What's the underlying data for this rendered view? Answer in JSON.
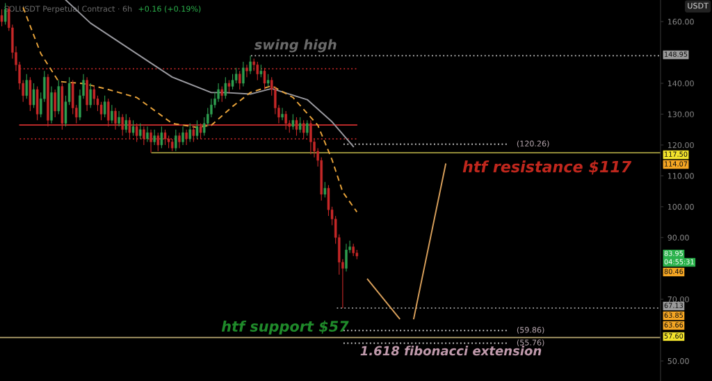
{
  "chart_data": {
    "type": "candlestick",
    "title": "SOLUSDT Perpetual Contract · 6h",
    "subtitle": "+0.16 (+0.19%)",
    "ylabel": "USDT",
    "categories": [
      null,
      null,
      null,
      null,
      null,
      null,
      null,
      null,
      null,
      null,
      null,
      null,
      null,
      null,
      null,
      null,
      null,
      null,
      null,
      null,
      null,
      null,
      null,
      null,
      null,
      null,
      null,
      null,
      null,
      null,
      null,
      null,
      null,
      null,
      null,
      null,
      null,
      null,
      null,
      null,
      null,
      null,
      null,
      null,
      null,
      null,
      null,
      null,
      null,
      null,
      null,
      null,
      null,
      null,
      null,
      null,
      null,
      null,
      null,
      null,
      null,
      null,
      null,
      null,
      null,
      null,
      null,
      null,
      null,
      null,
      null,
      null,
      null,
      null,
      null,
      null,
      null,
      null,
      null,
      null,
      null,
      null,
      null,
      null,
      null,
      null,
      null,
      null,
      null,
      null,
      null,
      null,
      null,
      null,
      null,
      null,
      null,
      null,
      null,
      null,
      null,
      null,
      null,
      null,
      null,
      null,
      null,
      null,
      null,
      null,
      null,
      null,
      null,
      null,
      null,
      null,
      null,
      null,
      null,
      null,
      null,
      null,
      null,
      null,
      null,
      null,
      null,
      null,
      null,
      null,
      null,
      null,
      null,
      null,
      null,
      null,
      null,
      null,
      null,
      null,
      null,
      null,
      null,
      null,
      null,
      null,
      null,
      null,
      null,
      null,
      null,
      null,
      null,
      null,
      null,
      null,
      null,
      null,
      null,
      null,
      null,
      null,
      null,
      null,
      null,
      null,
      null,
      null,
      null,
      null,
      null,
      null,
      null,
      null,
      null,
      null,
      null,
      null,
      null,
      null,
      null,
      null,
      null,
      null,
      null,
      null
    ],
    "ohlc": [
      [
        162,
        164,
        158.5,
        160
      ],
      [
        160,
        166,
        159,
        164
      ],
      [
        164,
        165,
        157,
        158
      ],
      [
        158,
        159,
        148,
        150
      ],
      [
        150,
        152,
        144,
        146
      ],
      [
        146,
        147,
        138,
        140
      ],
      [
        140,
        141,
        134,
        136
      ],
      [
        136,
        143,
        135,
        141
      ],
      [
        141,
        142,
        131,
        133
      ],
      [
        133,
        140,
        132,
        138
      ],
      [
        138,
        139,
        128,
        130
      ],
      [
        130,
        137,
        129,
        135
      ],
      [
        135,
        144,
        134,
        142
      ],
      [
        142,
        143,
        126,
        128
      ],
      [
        128,
        139,
        127,
        137
      ],
      [
        137,
        138,
        129,
        131
      ],
      [
        131,
        141,
        130,
        139
      ],
      [
        139,
        140,
        125,
        127
      ],
      [
        127,
        136,
        126,
        134
      ],
      [
        134,
        142,
        133,
        140
      ],
      [
        140,
        141,
        130,
        132
      ],
      [
        132,
        133,
        127,
        129
      ],
      [
        129,
        138,
        128,
        136
      ],
      [
        136,
        143,
        135,
        141
      ],
      [
        141,
        142,
        131,
        133
      ],
      [
        133,
        140,
        132,
        138
      ],
      [
        138,
        139,
        133,
        135
      ],
      [
        135,
        136,
        131,
        133
      ],
      [
        133,
        134,
        128,
        130
      ],
      [
        130,
        136,
        129,
        134
      ],
      [
        134,
        135,
        126,
        128
      ],
      [
        128,
        133,
        127,
        131
      ],
      [
        131,
        132,
        125,
        127
      ],
      [
        127,
        131,
        126,
        129
      ],
      [
        129,
        130,
        123,
        125
      ],
      [
        125,
        130,
        124,
        128
      ],
      [
        128,
        129,
        122,
        124
      ],
      [
        124,
        128,
        123,
        126
      ],
      [
        126,
        127,
        121,
        123
      ],
      [
        123,
        127,
        122,
        125
      ],
      [
        125,
        126,
        120,
        122
      ],
      [
        122,
        126,
        121,
        124
      ],
      [
        124,
        125,
        117.5,
        121
      ],
      [
        121,
        125,
        120,
        123
      ],
      [
        123,
        124,
        118,
        120
      ],
      [
        120,
        126,
        119,
        124
      ],
      [
        124,
        125,
        120,
        122
      ],
      [
        122,
        123,
        119,
        121
      ],
      [
        121,
        122,
        118,
        119
      ],
      [
        119,
        125,
        118,
        123
      ],
      [
        123,
        124,
        119,
        121
      ],
      [
        121,
        126,
        120,
        124
      ],
      [
        124,
        125,
        120,
        122
      ],
      [
        122,
        127,
        121,
        125
      ],
      [
        125,
        126,
        121,
        123
      ],
      [
        123,
        128,
        122,
        126
      ],
      [
        126,
        127,
        122,
        124
      ],
      [
        124,
        129,
        123,
        127
      ],
      [
        127,
        132,
        126,
        130
      ],
      [
        130,
        135,
        129,
        133
      ],
      [
        133,
        137,
        132,
        135
      ],
      [
        135,
        140,
        134,
        138
      ],
      [
        138,
        139,
        134,
        136
      ],
      [
        136,
        142,
        135,
        140
      ],
      [
        140,
        141,
        137,
        139
      ],
      [
        139,
        143,
        138,
        141
      ],
      [
        141,
        145,
        140,
        143
      ],
      [
        143,
        144,
        138,
        140
      ],
      [
        140,
        147,
        139,
        145
      ],
      [
        145,
        146,
        142,
        144
      ],
      [
        144,
        148.95,
        143,
        147
      ],
      [
        147,
        148,
        144,
        146
      ],
      [
        146,
        147,
        141,
        143
      ],
      [
        143,
        146,
        142,
        144
      ],
      [
        144,
        145,
        138,
        140
      ],
      [
        140,
        143,
        139,
        141
      ],
      [
        141,
        142,
        136,
        138
      ],
      [
        138,
        139,
        130,
        132
      ],
      [
        132,
        133,
        127,
        129
      ],
      [
        129,
        132,
        128,
        130
      ],
      [
        130,
        131,
        125,
        127
      ],
      [
        127,
        128,
        124,
        126
      ],
      [
        126,
        130,
        125,
        128
      ],
      [
        128,
        129,
        123,
        125
      ],
      [
        125,
        129,
        124,
        127
      ],
      [
        127,
        128,
        122,
        124
      ],
      [
        124,
        128,
        123,
        127
      ],
      [
        127,
        128,
        117,
        121
      ],
      [
        121,
        122,
        116,
        118
      ],
      [
        118,
        119,
        113,
        115
      ],
      [
        115,
        116,
        102,
        104
      ],
      [
        104,
        108,
        103,
        106
      ],
      [
        106,
        107,
        97,
        99
      ],
      [
        99,
        100,
        94,
        96
      ],
      [
        96,
        97,
        88,
        90
      ],
      [
        90,
        91,
        78,
        82
      ],
      [
        82,
        83,
        67.13,
        80
      ],
      [
        80,
        88,
        79,
        86
      ],
      [
        86,
        89,
        85,
        87
      ],
      [
        87,
        88,
        84,
        85
      ],
      [
        85,
        86,
        83,
        84
      ],
      null,
      null,
      null,
      null,
      null,
      null,
      null,
      null,
      null,
      null,
      null,
      null,
      null,
      null,
      null,
      null,
      null,
      null,
      null,
      null,
      null,
      null,
      null,
      null,
      null,
      null,
      null,
      null,
      null,
      null,
      null,
      null,
      null,
      null,
      null,
      null,
      null,
      null,
      null,
      null,
      null,
      null,
      null,
      null,
      null,
      null,
      null,
      null,
      null,
      null,
      null,
      null,
      null,
      null,
      null,
      null,
      null,
      null,
      null,
      null,
      null,
      null,
      null,
      null,
      null,
      null,
      null,
      null,
      null,
      null,
      null,
      null,
      null,
      null,
      null,
      null,
      null,
      null,
      null,
      null,
      null,
      null,
      null,
      null,
      null
    ],
    "colors": [
      "#c62828",
      "#2e9e4f",
      "#c62828",
      "#c62828",
      "#c62828",
      "#c62828",
      "#c62828",
      "#2e9e4f",
      "#c62828",
      "#2e9e4f",
      "#c62828",
      "#2e9e4f",
      "#2e9e4f",
      "#c62828",
      "#2e9e4f",
      "#c62828",
      "#2e9e4f",
      "#c62828",
      "#2e9e4f",
      "#2e9e4f",
      "#c62828",
      "#c62828",
      "#2e9e4f",
      "#2e9e4f",
      "#c62828",
      "#2e9e4f",
      "#c62828",
      "#c62828",
      "#c62828",
      "#2e9e4f",
      "#c62828",
      "#2e9e4f",
      "#c62828",
      "#2e9e4f",
      "#c62828",
      "#2e9e4f",
      "#c62828",
      "#2e9e4f",
      "#c62828",
      "#2e9e4f",
      "#c62828",
      "#2e9e4f",
      "#c62828",
      "#2e9e4f",
      "#c62828",
      "#2e9e4f",
      "#c62828",
      "#c62828",
      "#c62828",
      "#2e9e4f",
      "#c62828",
      "#2e9e4f",
      "#c62828",
      "#2e9e4f",
      "#c62828",
      "#2e9e4f",
      "#c62828",
      "#2e9e4f",
      "#2e9e4f",
      "#2e9e4f",
      "#2e9e4f",
      "#2e9e4f",
      "#c62828",
      "#2e9e4f",
      "#c62828",
      "#2e9e4f",
      "#2e9e4f",
      "#c62828",
      "#2e9e4f",
      "#c62828",
      "#2e9e4f",
      "#c62828",
      "#c62828",
      "#2e9e4f",
      "#c62828",
      "#2e9e4f",
      "#c62828",
      "#c62828",
      "#c62828",
      "#2e9e4f",
      "#c62828",
      "#c62828",
      "#2e9e4f",
      "#c62828",
      "#2e9e4f",
      "#c62828",
      "#2e9e4f",
      "#c62828",
      "#c62828",
      "#c62828",
      "#c62828",
      "#2e9e4f",
      "#c62828",
      "#c62828",
      "#c62828",
      "#c62828",
      "#c62828",
      "#2e9e4f",
      "#2e9e4f",
      "#c62828",
      "#c62828",
      null,
      null,
      null,
      null,
      null,
      null,
      null,
      null,
      null,
      null,
      null,
      null,
      null,
      null,
      null,
      null,
      null,
      null,
      null,
      null,
      null,
      null,
      null,
      null,
      null,
      null,
      null,
      null,
      null,
      null,
      null,
      null,
      null,
      null,
      null,
      null,
      null,
      null,
      null,
      null,
      null,
      null,
      null,
      null,
      null,
      null,
      null,
      null,
      null,
      null,
      null,
      null,
      null,
      null,
      null,
      null,
      null,
      null,
      null,
      null,
      null,
      null,
      null,
      null,
      null,
      null,
      null,
      null,
      null,
      null,
      null,
      null,
      null,
      null,
      null,
      null,
      null,
      null,
      null,
      null,
      null,
      null,
      null,
      null,
      null
    ],
    "series": [
      {
        "type": "line",
        "color": "#9a9aa0",
        "line_style": "solid",
        "values": [
          null,
          null,
          null,
          null,
          null,
          null,
          null,
          null,
          null,
          null,
          null,
          null,
          null,
          null,
          null,
          null,
          null,
          null,
          167,
          null,
          null,
          null,
          null,
          null,
          null,
          159.5,
          null,
          null,
          null,
          null,
          null,
          null,
          null,
          null,
          null,
          null,
          null,
          null,
          149.6,
          null,
          null,
          null,
          null,
          null,
          null,
          null,
          null,
          null,
          142,
          null,
          null,
          null,
          null,
          null,
          null,
          null,
          null,
          null,
          null,
          137,
          null,
          null,
          null,
          137,
          null,
          null,
          null,
          null,
          null,
          null,
          136.5,
          null,
          null,
          null,
          null,
          null,
          138.3,
          null,
          null,
          null,
          null,
          null,
          null,
          null,
          null,
          null,
          134.7,
          null,
          null,
          null,
          null,
          null,
          null,
          127.5,
          null,
          null,
          null,
          null,
          null,
          119.5,
          null,
          null,
          null,
          null,
          null,
          null,
          null,
          null,
          null,
          null,
          null,
          null,
          null,
          null,
          null,
          null,
          null,
          null,
          null,
          null,
          null,
          null,
          null,
          null,
          null,
          null,
          null,
          null,
          null,
          null,
          null,
          null,
          null,
          null,
          null,
          null,
          null,
          null,
          null,
          null,
          null,
          null,
          null,
          null,
          null,
          null,
          null,
          null,
          null,
          null,
          null,
          null,
          null,
          null,
          null,
          null,
          null,
          null,
          null,
          null,
          null,
          null,
          null,
          null,
          null,
          null,
          null,
          null,
          null,
          null,
          null,
          null,
          null,
          null,
          null,
          null,
          null,
          null,
          null,
          null,
          null,
          null,
          null,
          null,
          null,
          null
        ]
      },
      {
        "type": "line",
        "color": "#e8a33a",
        "line_style": "dashed",
        "values": [
          null,
          null,
          null,
          null,
          null,
          null,
          164.6,
          null,
          null,
          null,
          null,
          149.6,
          null,
          null,
          null,
          null,
          140.6,
          null,
          null,
          null,
          null,
          null,
          null,
          139.9,
          null,
          null,
          null,
          null,
          null,
          138.3,
          null,
          null,
          null,
          null,
          null,
          null,
          null,
          null,
          135.4,
          null,
          null,
          null,
          null,
          null,
          null,
          null,
          null,
          null,
          127,
          null,
          null,
          null,
          null,
          null,
          null,
          125.7,
          null,
          null,
          null,
          126.4,
          null,
          null,
          null,
          null,
          null,
          132.5,
          null,
          null,
          null,
          null,
          137,
          null,
          null,
          null,
          null,
          null,
          139.2,
          null,
          null,
          null,
          null,
          null,
          135.4,
          null,
          null,
          null,
          null,
          null,
          null,
          126.4,
          null,
          null,
          null,
          115.2,
          null,
          null,
          104.8,
          null,
          null,
          null,
          98.3,
          null,
          null,
          null,
          null,
          null,
          null,
          null,
          null,
          null,
          null,
          null,
          null,
          null,
          null,
          null,
          null,
          null,
          null,
          null,
          null,
          null,
          null,
          null,
          null,
          null,
          null,
          null,
          null,
          null,
          null,
          null,
          null,
          null,
          null,
          null,
          null,
          null,
          null,
          null,
          null,
          null,
          null,
          null,
          null,
          null,
          null,
          null,
          null,
          null,
          null,
          null,
          null,
          null,
          null,
          null,
          null,
          null,
          null,
          null,
          null,
          null,
          null,
          null,
          null,
          null,
          null,
          null,
          null,
          null,
          null,
          null,
          null,
          null,
          null,
          null,
          null,
          null,
          null,
          null,
          null,
          null,
          null,
          null,
          null,
          null
        ]
      },
      {
        "type": "line",
        "color": "#d9a05b",
        "line_style": "solid",
        "values": [
          null,
          null,
          null,
          null,
          null,
          null,
          null,
          null,
          null,
          null,
          null,
          null,
          null,
          null,
          null,
          null,
          null,
          null,
          null,
          null,
          null,
          null,
          null,
          null,
          null,
          null,
          null,
          null,
          null,
          null,
          null,
          null,
          null,
          null,
          null,
          null,
          null,
          null,
          null,
          null,
          null,
          null,
          null,
          null,
          null,
          null,
          null,
          null,
          null,
          null,
          null,
          null,
          null,
          null,
          null,
          null,
          null,
          null,
          null,
          null,
          null,
          null,
          null,
          null,
          null,
          null,
          null,
          null,
          null,
          null,
          null,
          null,
          null,
          null,
          null,
          null,
          null,
          null,
          null,
          null,
          null,
          null,
          null,
          null,
          null,
          null,
          null,
          null,
          null,
          null,
          null,
          null,
          null,
          null,
          null,
          null,
          null,
          null,
          null,
          null,
          null,
          null,
          null,
          76.5,
          null,
          null,
          null,
          null,
          null,
          null,
          null,
          null,
          63.7,
          null,
          null,
          null,
          null,
          null,
          null,
          null,
          null,
          null,
          null,
          null,
          null,
          null,
          null,
          null,
          null,
          null,
          null,
          null,
          null,
          null,
          null,
          null,
          null,
          null,
          null,
          null,
          null,
          null,
          null,
          null,
          null,
          null,
          null,
          null,
          null,
          null,
          null,
          null,
          null,
          null,
          null,
          null,
          null,
          null,
          null,
          null,
          null,
          null,
          null,
          null,
          null,
          null,
          null,
          null,
          null,
          null,
          null,
          null,
          null,
          null,
          null,
          null,
          null,
          null,
          null,
          null,
          null,
          null,
          null,
          null,
          null,
          null
        ]
      },
      {
        "type": "line",
        "color": "#d9a05b",
        "line_style": "solid",
        "values": [
          null,
          null,
          null,
          null,
          null,
          null,
          null,
          null,
          null,
          null,
          null,
          null,
          null,
          null,
          null,
          null,
          null,
          null,
          null,
          null,
          null,
          null,
          null,
          null,
          null,
          null,
          null,
          null,
          null,
          null,
          null,
          null,
          null,
          null,
          null,
          null,
          null,
          null,
          null,
          null,
          null,
          null,
          null,
          null,
          null,
          null,
          null,
          null,
          null,
          null,
          null,
          null,
          null,
          null,
          null,
          null,
          null,
          null,
          null,
          null,
          null,
          null,
          null,
          null,
          null,
          null,
          null,
          null,
          null,
          null,
          null,
          null,
          null,
          null,
          null,
          null,
          null,
          null,
          null,
          null,
          null,
          null,
          null,
          null,
          null,
          null,
          null,
          null,
          null,
          null,
          null,
          null,
          null,
          null,
          null,
          null,
          null,
          null,
          null,
          null,
          null,
          null,
          null,
          null,
          null,
          null,
          null,
          null,
          null,
          null,
          null,
          null,
          null,
          null,
          null,
          null,
          63.7,
          null,
          null,
          null,
          null,
          null,
          null,
          null,
          null,
          113.8,
          null,
          null,
          null,
          null,
          null,
          null,
          null,
          null,
          null,
          null,
          null,
          null,
          null,
          null,
          null,
          null,
          null,
          null,
          null,
          null,
          null,
          null,
          null,
          null,
          null,
          null,
          null,
          null,
          null,
          null,
          null,
          null,
          null,
          null,
          null,
          null,
          null,
          null,
          null,
          null,
          null,
          null,
          null,
          null,
          null,
          null,
          null,
          null,
          null,
          null,
          null,
          null,
          null,
          null,
          null,
          null,
          null,
          null,
          null,
          null
        ]
      }
    ],
    "ref_lines": [
      {
        "axis": "y",
        "value": 148.95,
        "color": "#aaaaaa",
        "line_style": "dotted"
      },
      {
        "axis": "y",
        "value": 144.7,
        "color": "#c62828",
        "line_style": "dotted"
      },
      {
        "axis": "y",
        "value": 126.5,
        "color": "#d32f2f",
        "line_style": "solid"
      },
      {
        "axis": "y",
        "value": 122,
        "color": "#c62828",
        "line_style": "dotted"
      },
      {
        "axis": "y",
        "value": 120.26,
        "label": "(120.26)",
        "color": "#cccccc",
        "line_style": "dotted"
      },
      {
        "axis": "y",
        "value": 117.5,
        "color": "#a8a040",
        "line_style": "solid"
      },
      {
        "axis": "y",
        "value": 67.13,
        "color": "#aaaaaa",
        "line_style": "dotted"
      },
      {
        "axis": "y",
        "value": 59.86,
        "label": "(59.86)",
        "color": "#cccccc",
        "line_style": "dotted"
      },
      {
        "axis": "y",
        "value": 57.6,
        "color": "#b8a870",
        "line_style": "solid"
      },
      {
        "axis": "y",
        "value": 55.76,
        "label": "(55.76)",
        "color": "#cccccc",
        "line_style": "dotted"
      }
    ],
    "annotations": [
      "swing high",
      "htf resistance $117",
      "htf support $57",
      "1.618 fibonacci extension",
      "148.95",
      "117.50",
      "114.07",
      "83.95",
      "04:55:31",
      "80.46",
      "67.13",
      "63.85",
      "63.66",
      "57.60"
    ],
    "ylim": [
      43.5,
      167
    ],
    "yticks": [
      {
        "value": 50,
        "label": "50.00"
      },
      {
        "value": 70,
        "label": "70.00"
      },
      {
        "value": 90,
        "label": "90.00"
      },
      {
        "value": 100,
        "label": "100.00"
      },
      {
        "value": 110,
        "label": "110.00"
      },
      {
        "value": 120,
        "label": "120.00"
      },
      {
        "value": 130,
        "label": "130.00"
      },
      {
        "value": 140,
        "label": "140.00"
      },
      {
        "value": 160,
        "label": "160.00"
      }
    ],
    "tick_labels": "y",
    "grid": false,
    "legend": false
  }
}
